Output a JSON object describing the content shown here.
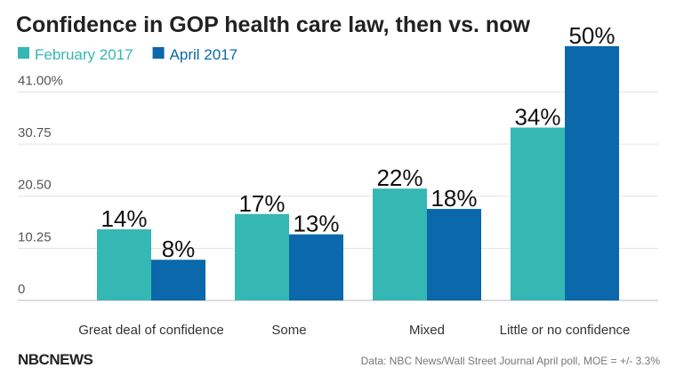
{
  "chart_data": {
    "type": "bar",
    "title": "Confidence in GOP health care law, then vs. now",
    "categories": [
      "Great deal of confidence",
      "Some",
      "Mixed",
      "Little or no confidence"
    ],
    "series": [
      {
        "name": "February 2017",
        "color": "#35b8b4",
        "values": [
          14,
          17,
          22,
          34
        ],
        "value_labels": [
          "14%",
          "17%",
          "22%",
          "34%"
        ]
      },
      {
        "name": "April 2017",
        "color": "#0a68ab",
        "values": [
          8,
          13,
          18,
          50
        ],
        "value_labels": [
          "8%",
          "13%",
          "18%",
          "50%"
        ]
      }
    ],
    "ylim": [
      0,
      50
    ],
    "yticks": [
      0,
      10.25,
      {
        "value": 20.5,
        "label": "20.50"
      },
      30.75,
      {
        "value": 41,
        "label": "41.00%"
      }
    ],
    "grid": true,
    "legend": "top-left",
    "source": "Data: NBC News/Wall Street Journal April poll, MOE = +/- 3.3%",
    "logo": "NBCNEWS"
  }
}
